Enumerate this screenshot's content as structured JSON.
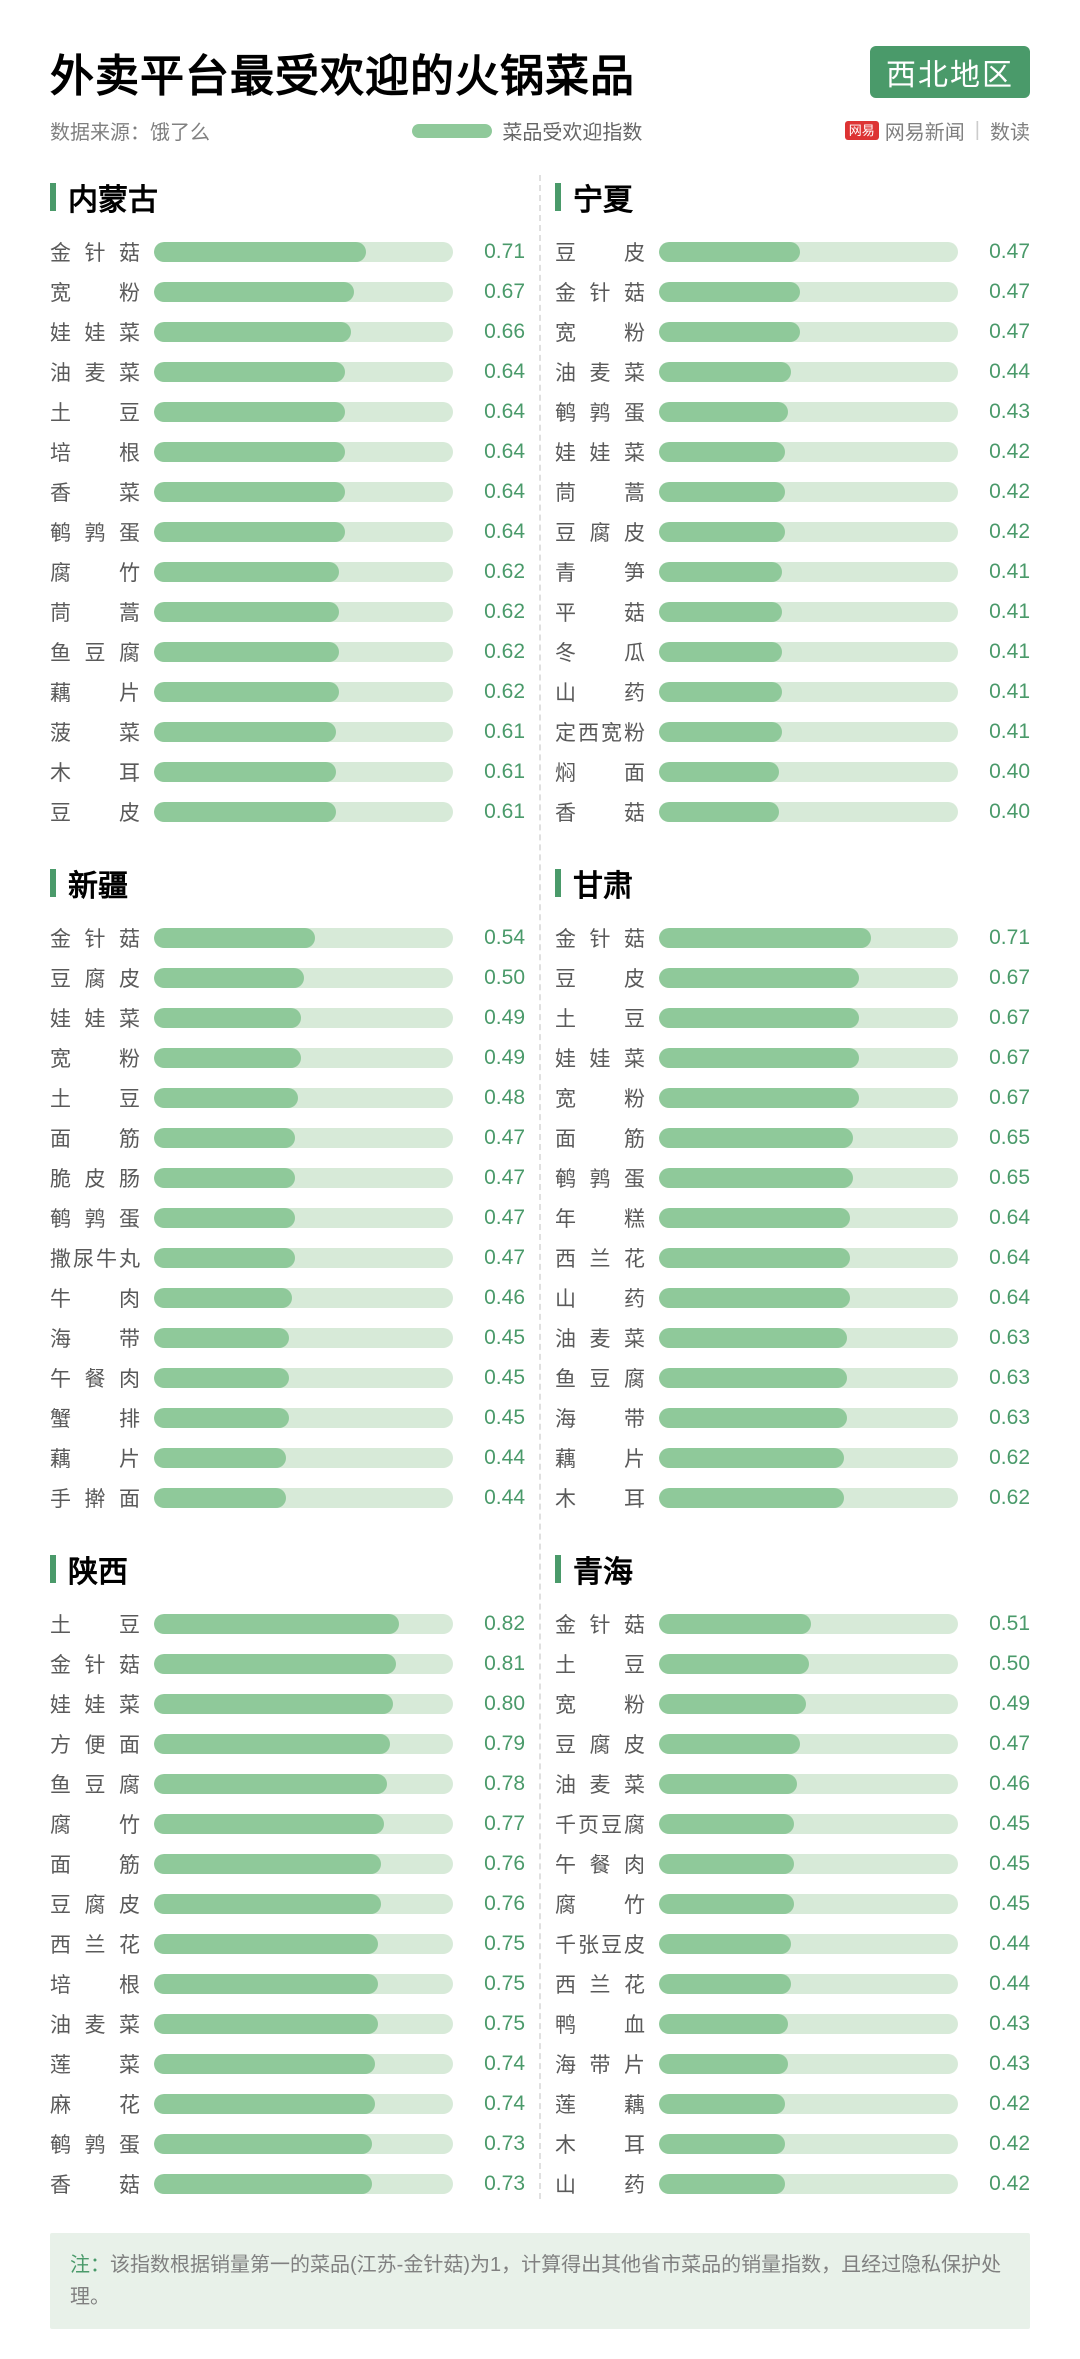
{
  "title": "外卖平台最受欢迎的火锅菜品",
  "region_badge": "西北地区",
  "source": "数据来源：饿了么",
  "legend_label": "菜品受欢迎指数",
  "brand_logo": "网易",
  "brand_text1": "网易新闻",
  "brand_text2": "数读",
  "footnote_tag": "注：",
  "footnote_text": "该指数根据销量第一的菜品(江苏-金针菇)为1，计算得出其他省市菜品的销量指数，且经过隐私保护处理。",
  "colors": {
    "bar_fill": "#8fc99a",
    "bar_track": "#d7ead8",
    "accent": "#4a9a6a",
    "value_text": "#4a9a6a",
    "label_text": "#5a5a5a",
    "muted": "#808080",
    "title": "#000000",
    "dashed": "#e0e0e0",
    "footnote_bg": "#e8f1e9",
    "logo_bg": "#d33"
  },
  "bar_max": 1.0,
  "panels": [
    {
      "name": "内蒙古",
      "items": [
        {
          "label": "金针菇",
          "value": 0.71
        },
        {
          "label": "宽粉",
          "value": 0.67
        },
        {
          "label": "娃娃菜",
          "value": 0.66
        },
        {
          "label": "油麦菜",
          "value": 0.64
        },
        {
          "label": "土豆",
          "value": 0.64
        },
        {
          "label": "培根",
          "value": 0.64
        },
        {
          "label": "香菜",
          "value": 0.64
        },
        {
          "label": "鹌鹑蛋",
          "value": 0.64
        },
        {
          "label": "腐竹",
          "value": 0.62
        },
        {
          "label": "茼蒿",
          "value": 0.62
        },
        {
          "label": "鱼豆腐",
          "value": 0.62
        },
        {
          "label": "藕片",
          "value": 0.62
        },
        {
          "label": "菠菜",
          "value": 0.61
        },
        {
          "label": "木耳",
          "value": 0.61
        },
        {
          "label": "豆皮",
          "value": 0.61
        }
      ]
    },
    {
      "name": "宁夏",
      "items": [
        {
          "label": "豆皮",
          "value": 0.47
        },
        {
          "label": "金针菇",
          "value": 0.47
        },
        {
          "label": "宽粉",
          "value": 0.47
        },
        {
          "label": "油麦菜",
          "value": 0.44
        },
        {
          "label": "鹌鹑蛋",
          "value": 0.43
        },
        {
          "label": "娃娃菜",
          "value": 0.42
        },
        {
          "label": "茼蒿",
          "value": 0.42
        },
        {
          "label": "豆腐皮",
          "value": 0.42
        },
        {
          "label": "青笋",
          "value": 0.41
        },
        {
          "label": "平菇",
          "value": 0.41
        },
        {
          "label": "冬瓜",
          "value": 0.41
        },
        {
          "label": "山药",
          "value": 0.41
        },
        {
          "label": "定西宽粉",
          "value": 0.41
        },
        {
          "label": "焖面",
          "value": 0.4
        },
        {
          "label": "香菇",
          "value": 0.4
        }
      ]
    },
    {
      "name": "新疆",
      "items": [
        {
          "label": "金针菇",
          "value": 0.54
        },
        {
          "label": "豆腐皮",
          "value": 0.5
        },
        {
          "label": "娃娃菜",
          "value": 0.49
        },
        {
          "label": "宽粉",
          "value": 0.49
        },
        {
          "label": "土豆",
          "value": 0.48
        },
        {
          "label": "面筋",
          "value": 0.47
        },
        {
          "label": "脆皮肠",
          "value": 0.47
        },
        {
          "label": "鹌鹑蛋",
          "value": 0.47
        },
        {
          "label": "撒尿牛丸",
          "value": 0.47
        },
        {
          "label": "牛肉",
          "value": 0.46
        },
        {
          "label": "海带",
          "value": 0.45
        },
        {
          "label": "午餐肉",
          "value": 0.45
        },
        {
          "label": "蟹排",
          "value": 0.45
        },
        {
          "label": "藕片",
          "value": 0.44
        },
        {
          "label": "手擀面",
          "value": 0.44
        }
      ]
    },
    {
      "name": "甘肃",
      "items": [
        {
          "label": "金针菇",
          "value": 0.71
        },
        {
          "label": "豆皮",
          "value": 0.67
        },
        {
          "label": "土豆",
          "value": 0.67
        },
        {
          "label": "娃娃菜",
          "value": 0.67
        },
        {
          "label": "宽粉",
          "value": 0.67
        },
        {
          "label": "面筋",
          "value": 0.65
        },
        {
          "label": "鹌鹑蛋",
          "value": 0.65
        },
        {
          "label": "年糕",
          "value": 0.64
        },
        {
          "label": "西兰花",
          "value": 0.64
        },
        {
          "label": "山药",
          "value": 0.64
        },
        {
          "label": "油麦菜",
          "value": 0.63
        },
        {
          "label": "鱼豆腐",
          "value": 0.63
        },
        {
          "label": "海带",
          "value": 0.63
        },
        {
          "label": "藕片",
          "value": 0.62
        },
        {
          "label": "木耳",
          "value": 0.62
        }
      ]
    },
    {
      "name": "陕西",
      "items": [
        {
          "label": "土豆",
          "value": 0.82
        },
        {
          "label": "金针菇",
          "value": 0.81
        },
        {
          "label": "娃娃菜",
          "value": 0.8
        },
        {
          "label": "方便面",
          "value": 0.79
        },
        {
          "label": "鱼豆腐",
          "value": 0.78
        },
        {
          "label": "腐竹",
          "value": 0.77
        },
        {
          "label": "面筋",
          "value": 0.76
        },
        {
          "label": "豆腐皮",
          "value": 0.76
        },
        {
          "label": "西兰花",
          "value": 0.75
        },
        {
          "label": "培根",
          "value": 0.75
        },
        {
          "label": "油麦菜",
          "value": 0.75
        },
        {
          "label": "莲菜",
          "value": 0.74
        },
        {
          "label": "麻花",
          "value": 0.74
        },
        {
          "label": "鹌鹑蛋",
          "value": 0.73
        },
        {
          "label": "香菇",
          "value": 0.73
        }
      ]
    },
    {
      "name": "青海",
      "items": [
        {
          "label": "金针菇",
          "value": 0.51
        },
        {
          "label": "土豆",
          "value": 0.5
        },
        {
          "label": "宽粉",
          "value": 0.49
        },
        {
          "label": "豆腐皮",
          "value": 0.47
        },
        {
          "label": "油麦菜",
          "value": 0.46
        },
        {
          "label": "千页豆腐",
          "value": 0.45
        },
        {
          "label": "午餐肉",
          "value": 0.45
        },
        {
          "label": "腐竹",
          "value": 0.45
        },
        {
          "label": "千张豆皮",
          "value": 0.44
        },
        {
          "label": "西兰花",
          "value": 0.44
        },
        {
          "label": "鸭血",
          "value": 0.43
        },
        {
          "label": "海带片",
          "value": 0.43
        },
        {
          "label": "莲藕",
          "value": 0.42
        },
        {
          "label": "木耳",
          "value": 0.42
        },
        {
          "label": "山药",
          "value": 0.42
        }
      ]
    }
  ]
}
